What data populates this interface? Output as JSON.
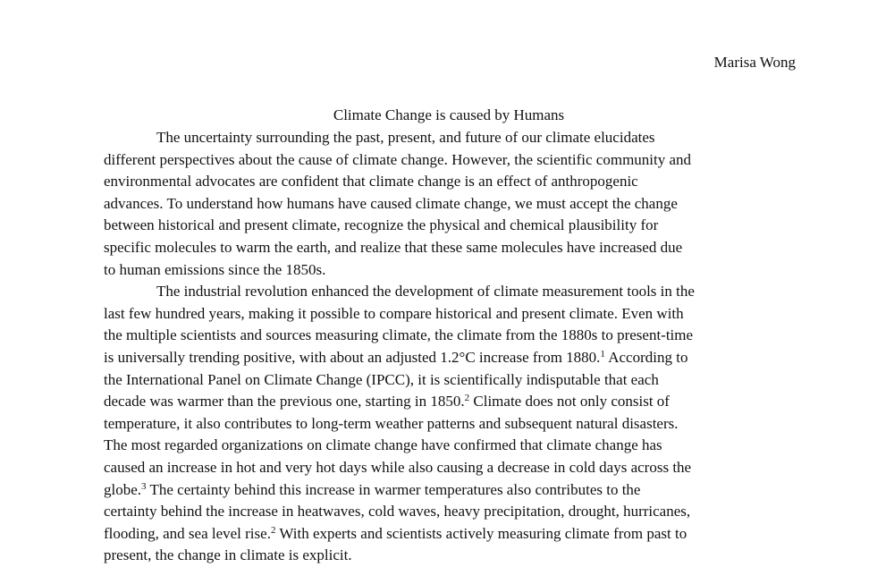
{
  "document": {
    "author": "Marisa Wong",
    "title": "Climate Change is caused by Humans",
    "paragraph1": [
      "The uncertainty surrounding the past, present, and future of our climate elucidates",
      "different perspectives about the cause of climate change. However, the scientific community and",
      "environmental advocates are confident that climate change is an effect of anthropogenic",
      "advances. To understand how humans have caused climate change, we must accept the change",
      "between historical and present climate, recognize the physical and chemical plausibility for",
      "specific molecules to warm the earth, and realize that these same molecules have increased due",
      "to human emissions since the 1850s."
    ],
    "paragraph2": {
      "line1": "The industrial revolution enhanced the development of climate measurement tools in the",
      "line2": "last few hundred years, making it possible to compare historical and present climate. Even with",
      "line3": "the multiple scientists and sources measuring climate, the climate from the 1880s to present-time",
      "line4a": "is universally trending positive, with about an adjusted 1.2°C increase from 1880.",
      "line4_sup": "1",
      "line4b": " According to",
      "line5": "the International Panel on Climate Change (IPCC), it is scientifically indisputable that each",
      "line6a": "decade was warmer than the previous one, starting in 1850.",
      "line6_sup": "2",
      "line6b": " Climate does not only consist of",
      "line7": "temperature, it also contributes to long-term weather patterns and subsequent natural disasters.",
      "line8": "The most regarded organizations on climate change have confirmed that climate change has",
      "line9": "caused an increase in hot and very hot days while also causing a decrease in cold days across the",
      "line10a": "globe.",
      "line10_sup": "3",
      "line10b": " The certainty behind this increase in warmer temperatures also contributes to the",
      "line11": "certainty behind the increase in heatwaves, cold waves, heavy precipitation, drought, hurricanes,",
      "line12a": "flooding, and sea level rise.",
      "line12_sup": "2",
      "line12b": " With experts and scientists actively measuring climate from past to",
      "line13": "present, the change in climate is explicit."
    }
  }
}
